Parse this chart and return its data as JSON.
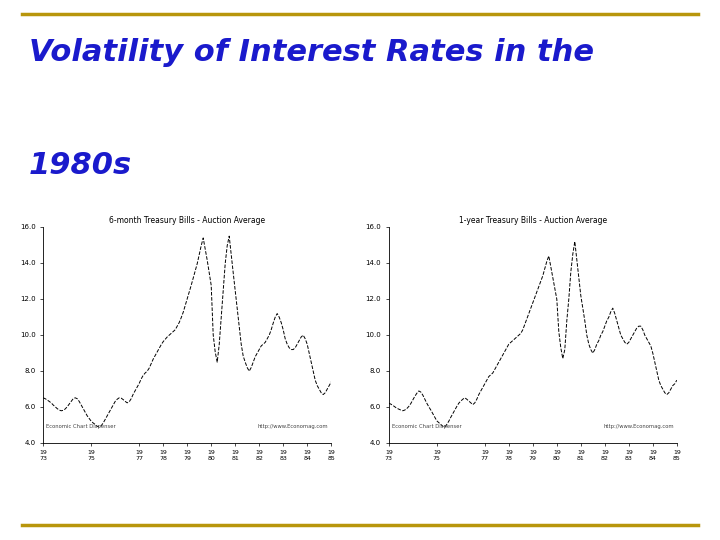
{
  "title_line1": "Volatility of Interest Rates in the",
  "title_line2": "1980s",
  "title_color": "#1a1acc",
  "title_fontsize": 22,
  "title_fontstyle": "italic",
  "title_fontweight": "bold",
  "background_color": "#ffffff",
  "border_color": "#b8960c",
  "chart1_title": "6-month Treasury Bills - Auction Average",
  "chart2_title": "1-year Treasury Bills - Auction Average",
  "source_text": "Economic Chart Dispenser",
  "url_text": "http://www.Economag.com",
  "line_color": "#000000",
  "line_style": "--",
  "line_width": 0.7,
  "ylim": [
    4.0,
    16.0
  ],
  "yticks": [
    4.0,
    6.0,
    8.0,
    10.0,
    12.0,
    14.0,
    16.0
  ],
  "xtick_years": [
    "73",
    "75",
    "77",
    "78",
    "79",
    "80",
    "81",
    "82",
    "83",
    "84",
    "85"
  ],
  "xtick_positions": [
    0,
    2,
    4,
    5,
    6,
    7,
    8,
    9,
    10,
    11,
    12
  ],
  "chart1_y": [
    6.5,
    6.45,
    6.38,
    6.3,
    6.22,
    6.1,
    6.0,
    5.9,
    5.82,
    5.78,
    5.8,
    5.88,
    6.0,
    6.15,
    6.3,
    6.45,
    6.5,
    6.45,
    6.3,
    6.1,
    5.9,
    5.7,
    5.5,
    5.35,
    5.2,
    5.1,
    5.02,
    4.92,
    4.88,
    4.95,
    5.1,
    5.3,
    5.5,
    5.7,
    5.9,
    6.1,
    6.3,
    6.42,
    6.5,
    6.48,
    6.4,
    6.3,
    6.22,
    6.28,
    6.45,
    6.7,
    6.9,
    7.1,
    7.3,
    7.55,
    7.75,
    7.88,
    7.98,
    8.15,
    8.4,
    8.65,
    8.85,
    9.05,
    9.25,
    9.45,
    9.62,
    9.75,
    9.88,
    9.98,
    10.08,
    10.18,
    10.28,
    10.48,
    10.68,
    10.95,
    11.25,
    11.62,
    11.98,
    12.38,
    12.75,
    13.15,
    13.55,
    13.95,
    14.45,
    14.95,
    15.38,
    14.75,
    14.15,
    13.45,
    12.75,
    10.0,
    9.05,
    8.48,
    9.45,
    10.95,
    12.45,
    13.95,
    14.95,
    15.48,
    14.45,
    13.45,
    12.45,
    11.45,
    10.45,
    9.48,
    8.82,
    8.48,
    8.18,
    7.98,
    8.18,
    8.48,
    8.78,
    8.98,
    9.18,
    9.38,
    9.48,
    9.58,
    9.78,
    9.98,
    10.28,
    10.65,
    10.98,
    11.18,
    10.98,
    10.68,
    10.28,
    9.78,
    9.48,
    9.28,
    9.18,
    9.18,
    9.28,
    9.48,
    9.68,
    9.88,
    9.98,
    9.78,
    9.48,
    8.98,
    8.48,
    7.98,
    7.48,
    7.18,
    6.98,
    6.78,
    6.68,
    6.78,
    6.98,
    7.18,
    7.38
  ],
  "chart2_y": [
    6.2,
    6.15,
    6.08,
    6.0,
    5.92,
    5.87,
    5.82,
    5.78,
    5.82,
    5.9,
    6.02,
    6.18,
    6.38,
    6.58,
    6.75,
    6.88,
    6.82,
    6.65,
    6.42,
    6.2,
    6.0,
    5.82,
    5.62,
    5.42,
    5.22,
    5.12,
    5.02,
    4.92,
    4.88,
    5.02,
    5.2,
    5.42,
    5.62,
    5.82,
    6.02,
    6.2,
    6.32,
    6.42,
    6.5,
    6.42,
    6.32,
    6.22,
    6.12,
    6.22,
    6.42,
    6.68,
    6.88,
    7.08,
    7.28,
    7.48,
    7.68,
    7.78,
    7.88,
    8.08,
    8.28,
    8.48,
    8.68,
    8.88,
    9.08,
    9.28,
    9.48,
    9.58,
    9.68,
    9.78,
    9.88,
    9.98,
    10.08,
    10.28,
    10.58,
    10.88,
    11.18,
    11.48,
    11.78,
    12.08,
    12.38,
    12.68,
    12.98,
    13.28,
    13.68,
    14.08,
    14.38,
    13.78,
    13.18,
    12.58,
    11.98,
    10.18,
    9.28,
    8.68,
    9.18,
    10.78,
    11.98,
    13.48,
    14.48,
    15.18,
    14.18,
    13.18,
    12.18,
    11.48,
    10.78,
    9.98,
    9.48,
    9.18,
    8.98,
    9.18,
    9.48,
    9.68,
    9.98,
    10.18,
    10.48,
    10.78,
    10.98,
    11.28,
    11.48,
    11.18,
    10.78,
    10.38,
    9.98,
    9.78,
    9.58,
    9.48,
    9.58,
    9.78,
    9.98,
    10.18,
    10.38,
    10.48,
    10.48,
    10.28,
    9.98,
    9.78,
    9.58,
    9.38,
    8.98,
    8.48,
    7.98,
    7.48,
    7.18,
    6.98,
    6.78,
    6.68,
    6.78,
    6.98,
    7.18,
    7.28,
    7.48
  ]
}
